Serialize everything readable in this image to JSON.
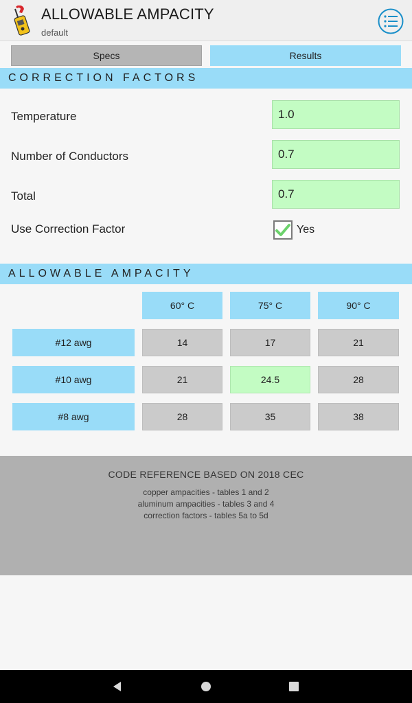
{
  "header": {
    "title": "ALLOWABLE AMPACITY",
    "subtitle": "default",
    "app_icon": "clamp-meter-icon",
    "menu_icon": "list-menu-icon"
  },
  "tabs": [
    {
      "label": "Specs",
      "active": false
    },
    {
      "label": "Results",
      "active": true
    }
  ],
  "correction": {
    "heading": "CORRECTION FACTORS",
    "rows": [
      {
        "label": "Temperature",
        "value": "1.0"
      },
      {
        "label": "Number of Conductors",
        "value": "0.7"
      },
      {
        "label": "Total",
        "value": "0.7"
      }
    ],
    "use_label": "Use Correction Factor",
    "use_checked": true,
    "use_value_label": "Yes"
  },
  "ampacity": {
    "heading": "ALLOWABLE AMPACITY",
    "columns": [
      "60° C",
      "75° C",
      "90° C"
    ],
    "rows": [
      {
        "label": "#12 awg",
        "values": [
          "14",
          "17",
          "21"
        ]
      },
      {
        "label": "#10 awg",
        "values": [
          "21",
          "24.5",
          "28"
        ]
      },
      {
        "label": "#8 awg",
        "values": [
          "28",
          "35",
          "38"
        ]
      }
    ],
    "highlight": {
      "row": 1,
      "col": 1
    }
  },
  "code_reference": {
    "title": "CODE REFERENCE BASED ON 2018 CEC",
    "lines": [
      "copper ampacities - tables 1 and 2",
      "aluminum ampacities - tables 3 and 4",
      "correction factors - tables 5a to 5d"
    ]
  },
  "colors": {
    "accent_blue": "#99dcf8",
    "value_green": "#c3fcc3",
    "cell_gray": "#cbcbcb",
    "code_box_gray": "#b0b0b0",
    "icon_blue": "#1a8fc9"
  },
  "navbar": {
    "icons": [
      "back-icon",
      "home-icon",
      "recents-icon"
    ]
  }
}
